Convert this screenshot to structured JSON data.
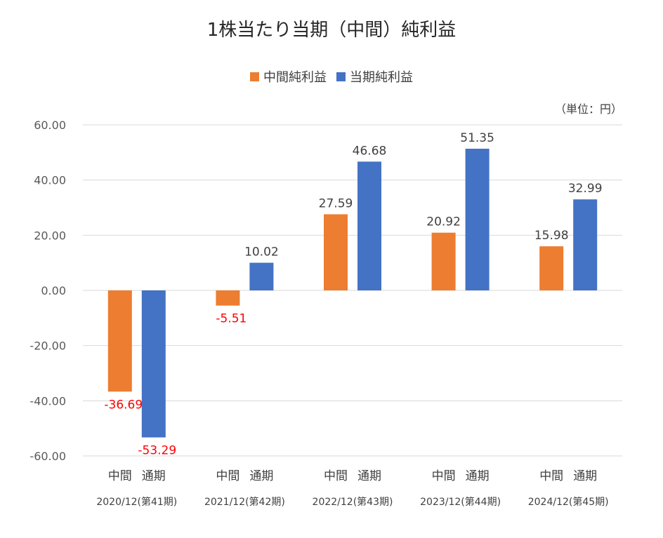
{
  "chart_data": {
    "type": "bar",
    "title": "1株当たり当期（中間）純利益",
    "unit_label": "（単位：円）",
    "series": [
      {
        "name": "中間純利益",
        "color": "#ED7D31",
        "values": [
          -36.69,
          -5.51,
          27.59,
          20.92,
          15.98
        ]
      },
      {
        "name": "当期純利益",
        "color": "#4472C4",
        "values": [
          -53.29,
          10.02,
          46.68,
          51.35,
          32.99
        ]
      }
    ],
    "categories": [
      "2020/12(第41期)",
      "2021/12(第42期)",
      "2022/12(第43期)",
      "2023/12(第44期)",
      "2024/12(第45期)"
    ],
    "sub_labels": [
      "中間",
      "通期"
    ],
    "ylim": [
      -60,
      60
    ],
    "yticks": [
      "60.00",
      "40.00",
      "20.00",
      "0.00",
      "-20.00",
      "-40.00",
      "-60.00"
    ],
    "negative_label_color": "#FF0000",
    "positive_label_color": "#404040",
    "grid": true,
    "legend_position": "top"
  }
}
